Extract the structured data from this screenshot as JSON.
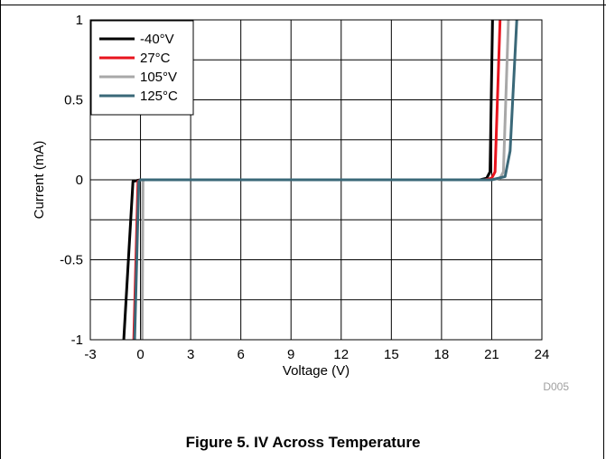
{
  "figure": {
    "caption": "Figure 5. IV Across Temperature",
    "code": "D005"
  },
  "chart_data": {
    "type": "line",
    "xlabel": "Voltage (V)",
    "ylabel": "Current (mA)",
    "xlim": [
      -3,
      24
    ],
    "ylim": [
      -1,
      1
    ],
    "xticks": [
      -3,
      0,
      3,
      6,
      9,
      12,
      15,
      18,
      21,
      24
    ],
    "xtick_labels": [
      "-3",
      "0",
      "3",
      "6",
      "9",
      "12",
      "15",
      "18",
      "21",
      "24"
    ],
    "yticks": [
      -1,
      -0.5,
      0,
      0.5,
      1
    ],
    "ytick_labels": [
      "-1",
      "-0.5",
      "0",
      "0.5",
      "1"
    ],
    "grid": true,
    "legend_position": "top-left",
    "series": [
      {
        "name": "-40°V",
        "color": "#000000",
        "x": [
          -1.0,
          -0.45,
          0.0,
          20.3,
          20.7,
          20.9,
          21.05
        ],
        "y": [
          -1.0,
          -0.01,
          0.0,
          0.0,
          0.01,
          0.05,
          1.0
        ]
      },
      {
        "name": "27°C",
        "color": "#e8141e",
        "x": [
          -0.4,
          -0.15,
          0.0,
          20.6,
          21.0,
          21.2,
          21.5
        ],
        "y": [
          -1.0,
          -0.01,
          0.0,
          0.0,
          0.01,
          0.05,
          1.0
        ]
      },
      {
        "name": "105°V",
        "color": "#a8a8a8",
        "x": [
          0.1,
          0.15,
          0.2,
          21.0,
          21.5,
          21.7,
          22.0
        ],
        "y": [
          -1.0,
          -0.01,
          0.0,
          0.0,
          0.01,
          0.05,
          1.0
        ]
      },
      {
        "name": "125°C",
        "color": "#3a6878",
        "x": [
          -0.35,
          -0.1,
          0.0,
          21.0,
          21.8,
          22.1,
          22.5
        ],
        "y": [
          -1.0,
          -0.01,
          0.0,
          0.0,
          0.02,
          0.18,
          1.0
        ]
      }
    ]
  }
}
